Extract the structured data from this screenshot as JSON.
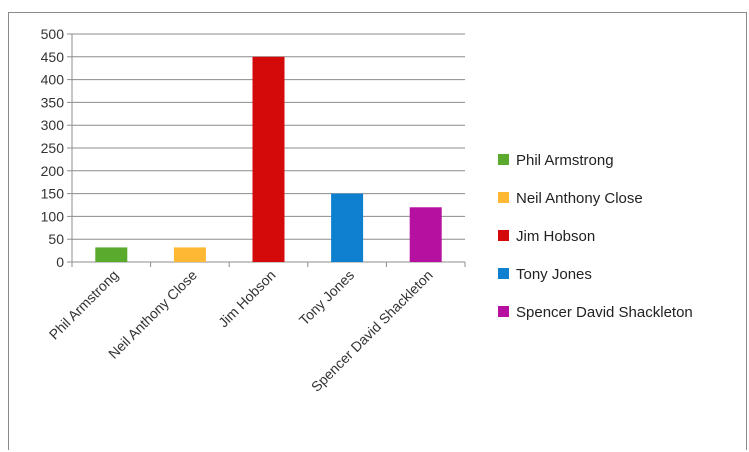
{
  "chart_data": {
    "type": "bar",
    "categories": [
      "Phil Armstrong",
      "Neil Anthony Close",
      "Jim Hobson",
      "Tony Jones",
      "Spencer David Shackleton"
    ],
    "values": [
      32,
      32,
      450,
      150,
      120
    ],
    "colors": [
      "#5aaa2e",
      "#ffb833",
      "#d40a0a",
      "#0f7fd0",
      "#b5109f"
    ],
    "ylim": [
      0,
      500
    ],
    "yticks": [
      0,
      50,
      100,
      150,
      200,
      250,
      300,
      350,
      400,
      450,
      500
    ],
    "grid": true,
    "legend": {
      "position": "right",
      "entries": [
        "Phil Armstrong",
        "Neil Anthony Close",
        "Jim Hobson",
        "Tony Jones",
        "Spencer David Shackleton"
      ]
    },
    "title": "",
    "xlabel": "",
    "ylabel": ""
  }
}
